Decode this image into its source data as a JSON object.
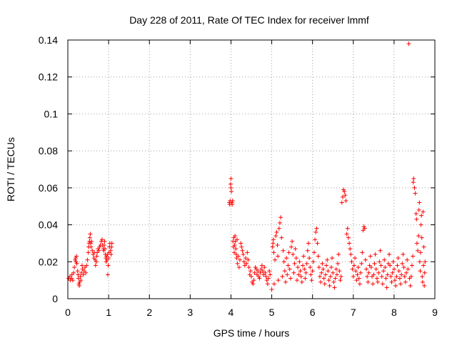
{
  "chart_data": {
    "type": "scatter",
    "title": "Day 228 of 2011, Rate Of TEC Index for receiver lmmf",
    "xlabel": "GPS time / hours",
    "ylabel": "ROTI / TECUs",
    "xlim": [
      0,
      9
    ],
    "ylim": [
      0,
      0.14
    ],
    "xticks": [
      "0",
      "1",
      "2",
      "3",
      "4",
      "5",
      "6",
      "7",
      "8",
      "9"
    ],
    "yticks": [
      "0",
      "0.02",
      "0.04",
      "0.06",
      "0.08",
      "0.1",
      "0.12",
      "0.14"
    ],
    "grid": true,
    "marker": "+",
    "color": "#ff0000",
    "points": [
      [
        0.02,
        0.011
      ],
      [
        0.05,
        0.012
      ],
      [
        0.06,
        0.01
      ],
      [
        0.09,
        0.011
      ],
      [
        0.1,
        0.013
      ],
      [
        0.12,
        0.01
      ],
      [
        0.14,
        0.014
      ],
      [
        0.16,
        0.017
      ],
      [
        0.18,
        0.021
      ],
      [
        0.19,
        0.022
      ],
      [
        0.2,
        0.02
      ],
      [
        0.21,
        0.023
      ],
      [
        0.22,
        0.019
      ],
      [
        0.24,
        0.015
      ],
      [
        0.25,
        0.013
      ],
      [
        0.26,
        0.011
      ],
      [
        0.27,
        0.008
      ],
      [
        0.28,
        0.007
      ],
      [
        0.29,
        0.009
      ],
      [
        0.31,
        0.012
      ],
      [
        0.32,
        0.01
      ],
      [
        0.33,
        0.014
      ],
      [
        0.35,
        0.018
      ],
      [
        0.36,
        0.016
      ],
      [
        0.38,
        0.013
      ],
      [
        0.4,
        0.015
      ],
      [
        0.42,
        0.017
      ],
      [
        0.44,
        0.014
      ],
      [
        0.46,
        0.018
      ],
      [
        0.48,
        0.021
      ],
      [
        0.5,
        0.025
      ],
      [
        0.51,
        0.028
      ],
      [
        0.52,
        0.03
      ],
      [
        0.53,
        0.031
      ],
      [
        0.54,
        0.033
      ],
      [
        0.55,
        0.035
      ],
      [
        0.56,
        0.03
      ],
      [
        0.57,
        0.028
      ],
      [
        0.58,
        0.031
      ],
      [
        0.6,
        0.026
      ],
      [
        0.62,
        0.024
      ],
      [
        0.64,
        0.022
      ],
      [
        0.65,
        0.025
      ],
      [
        0.67,
        0.021
      ],
      [
        0.68,
        0.018
      ],
      [
        0.7,
        0.02
      ],
      [
        0.71,
        0.023
      ],
      [
        0.72,
        0.025
      ],
      [
        0.74,
        0.027
      ],
      [
        0.76,
        0.026
      ],
      [
        0.78,
        0.028
      ],
      [
        0.8,
        0.029
      ],
      [
        0.82,
        0.031
      ],
      [
        0.84,
        0.032
      ],
      [
        0.85,
        0.029
      ],
      [
        0.87,
        0.027
      ],
      [
        0.88,
        0.026
      ],
      [
        0.89,
        0.029
      ],
      [
        0.9,
        0.031
      ],
      [
        0.91,
        0.027
      ],
      [
        0.92,
        0.024
      ],
      [
        0.93,
        0.022
      ],
      [
        0.94,
        0.02
      ],
      [
        0.95,
        0.023
      ],
      [
        0.96,
        0.021
      ],
      [
        0.97,
        0.024
      ],
      [
        0.98,
        0.013
      ],
      [
        0.99,
        0.018
      ],
      [
        1.0,
        0.022
      ],
      [
        1.01,
        0.025
      ],
      [
        1.02,
        0.028
      ],
      [
        1.03,
        0.03
      ],
      [
        1.05,
        0.026
      ],
      [
        1.06,
        0.024
      ],
      [
        1.07,
        0.028
      ],
      [
        1.08,
        0.03
      ],
      [
        3.96,
        0.052
      ],
      [
        3.97,
        0.051
      ],
      [
        3.98,
        0.053
      ],
      [
        3.99,
        0.062
      ],
      [
        4.0,
        0.065
      ],
      [
        4.0,
        0.06
      ],
      [
        4.01,
        0.058
      ],
      [
        4.02,
        0.052
      ],
      [
        4.03,
        0.051
      ],
      [
        4.04,
        0.053
      ],
      [
        4.05,
        0.031
      ],
      [
        4.06,
        0.028
      ],
      [
        4.07,
        0.033
      ],
      [
        4.08,
        0.025
      ],
      [
        4.09,
        0.029
      ],
      [
        4.1,
        0.034
      ],
      [
        4.11,
        0.031
      ],
      [
        4.12,
        0.027
      ],
      [
        4.13,
        0.024
      ],
      [
        4.14,
        0.022
      ],
      [
        4.15,
        0.032
      ],
      [
        4.16,
        0.019
      ],
      [
        4.18,
        0.023
      ],
      [
        4.2,
        0.017
      ],
      [
        4.22,
        0.021
      ],
      [
        4.24,
        0.03
      ],
      [
        4.26,
        0.028
      ],
      [
        4.28,
        0.026
      ],
      [
        4.3,
        0.024
      ],
      [
        4.32,
        0.02
      ],
      [
        4.34,
        0.018
      ],
      [
        4.36,
        0.022
      ],
      [
        4.38,
        0.019
      ],
      [
        4.4,
        0.025
      ],
      [
        4.42,
        0.021
      ],
      [
        4.44,
        0.017
      ],
      [
        4.46,
        0.013
      ],
      [
        4.48,
        0.015
      ],
      [
        4.5,
        0.012
      ],
      [
        4.52,
        0.009
      ],
      [
        4.54,
        0.008
      ],
      [
        4.56,
        0.01
      ],
      [
        4.58,
        0.014
      ],
      [
        4.6,
        0.017
      ],
      [
        4.62,
        0.016
      ],
      [
        4.64,
        0.013
      ],
      [
        4.66,
        0.015
      ],
      [
        4.68,
        0.012
      ],
      [
        4.7,
        0.011
      ],
      [
        4.72,
        0.014
      ],
      [
        4.74,
        0.016
      ],
      [
        4.76,
        0.018
      ],
      [
        4.78,
        0.015
      ],
      [
        4.8,
        0.013
      ],
      [
        4.82,
        0.017
      ],
      [
        4.84,
        0.014
      ],
      [
        4.86,
        0.012
      ],
      [
        4.88,
        0.01
      ],
      [
        4.9,
        0.008
      ],
      [
        4.92,
        0.011
      ],
      [
        4.94,
        0.015
      ],
      [
        4.96,
        0.013
      ],
      [
        5.0,
        0.005
      ],
      [
        5.02,
        0.028
      ],
      [
        5.03,
        0.03
      ],
      [
        5.04,
        0.032
      ],
      [
        5.05,
        0.025
      ],
      [
        5.06,
        0.008
      ],
      [
        5.08,
        0.021
      ],
      [
        5.1,
        0.034
      ],
      [
        5.12,
        0.036
      ],
      [
        5.14,
        0.029
      ],
      [
        5.15,
        0.023
      ],
      [
        5.16,
        0.01
      ],
      [
        5.18,
        0.038
      ],
      [
        5.2,
        0.041
      ],
      [
        5.22,
        0.044
      ],
      [
        5.24,
        0.033
      ],
      [
        5.26,
        0.012
      ],
      [
        5.28,
        0.026
      ],
      [
        5.3,
        0.02
      ],
      [
        5.32,
        0.015
      ],
      [
        5.34,
        0.009
      ],
      [
        5.36,
        0.022
      ],
      [
        5.38,
        0.013
      ],
      [
        5.4,
        0.018
      ],
      [
        5.42,
        0.025
      ],
      [
        5.44,
        0.016
      ],
      [
        5.46,
        0.011
      ],
      [
        5.48,
        0.028
      ],
      [
        5.5,
        0.031
      ],
      [
        5.52,
        0.024
      ],
      [
        5.54,
        0.014
      ],
      [
        5.56,
        0.019
      ],
      [
        5.58,
        0.027
      ],
      [
        5.6,
        0.022
      ],
      [
        5.62,
        0.01
      ],
      [
        5.64,
        0.017
      ],
      [
        5.66,
        0.013
      ],
      [
        5.68,
        0.02
      ],
      [
        5.7,
        0.015
      ],
      [
        5.72,
        0.012
      ],
      [
        5.74,
        0.009
      ],
      [
        5.76,
        0.018
      ],
      [
        5.78,
        0.023
      ],
      [
        5.8,
        0.016
      ],
      [
        5.82,
        0.011
      ],
      [
        5.84,
        0.014
      ],
      [
        5.86,
        0.019
      ],
      [
        5.88,
        0.026
      ],
      [
        5.9,
        0.03
      ],
      [
        5.92,
        0.022
      ],
      [
        5.94,
        0.017
      ],
      [
        5.96,
        0.013
      ],
      [
        5.98,
        0.01
      ],
      [
        6.0,
        0.015
      ],
      [
        6.02,
        0.02
      ],
      [
        6.04,
        0.025
      ],
      [
        6.06,
        0.032
      ],
      [
        6.08,
        0.036
      ],
      [
        6.1,
        0.038
      ],
      [
        6.12,
        0.03
      ],
      [
        6.14,
        0.023
      ],
      [
        6.16,
        0.017
      ],
      [
        6.18,
        0.012
      ],
      [
        6.2,
        0.009
      ],
      [
        6.22,
        0.014
      ],
      [
        6.24,
        0.019
      ],
      [
        6.26,
        0.016
      ],
      [
        6.28,
        0.011
      ],
      [
        6.3,
        0.008
      ],
      [
        6.32,
        0.013
      ],
      [
        6.34,
        0.018
      ],
      [
        6.36,
        0.021
      ],
      [
        6.38,
        0.015
      ],
      [
        6.4,
        0.01
      ],
      [
        6.42,
        0.007
      ],
      [
        6.44,
        0.012
      ],
      [
        6.46,
        0.017
      ],
      [
        6.48,
        0.022
      ],
      [
        6.5,
        0.014
      ],
      [
        6.52,
        0.009
      ],
      [
        6.54,
        0.006
      ],
      [
        6.56,
        0.011
      ],
      [
        6.58,
        0.016
      ],
      [
        6.6,
        0.013
      ],
      [
        6.62,
        0.019
      ],
      [
        6.64,
        0.024
      ],
      [
        6.66,
        0.015
      ],
      [
        6.68,
        0.01
      ],
      [
        6.7,
        0.012
      ],
      [
        6.72,
        0.052
      ],
      [
        6.74,
        0.055
      ],
      [
        6.76,
        0.059
      ],
      [
        6.78,
        0.058
      ],
      [
        6.8,
        0.056
      ],
      [
        6.82,
        0.053
      ],
      [
        6.84,
        0.035
      ],
      [
        6.86,
        0.038
      ],
      [
        6.88,
        0.033
      ],
      [
        6.9,
        0.03
      ],
      [
        6.92,
        0.027
      ],
      [
        6.94,
        0.024
      ],
      [
        6.96,
        0.02
      ],
      [
        6.98,
        0.016
      ],
      [
        7.0,
        0.012
      ],
      [
        7.02,
        0.018
      ],
      [
        7.04,
        0.022
      ],
      [
        7.06,
        0.015
      ],
      [
        7.08,
        0.01
      ],
      [
        7.1,
        0.013
      ],
      [
        7.12,
        0.017
      ],
      [
        7.14,
        0.011
      ],
      [
        7.16,
        0.008
      ],
      [
        7.18,
        0.014
      ],
      [
        7.2,
        0.019
      ],
      [
        7.22,
        0.025
      ],
      [
        7.24,
        0.037
      ],
      [
        7.26,
        0.039
      ],
      [
        7.28,
        0.038
      ],
      [
        7.3,
        0.021
      ],
      [
        7.32,
        0.016
      ],
      [
        7.34,
        0.012
      ],
      [
        7.36,
        0.009
      ],
      [
        7.38,
        0.014
      ],
      [
        7.4,
        0.018
      ],
      [
        7.42,
        0.023
      ],
      [
        7.44,
        0.017
      ],
      [
        7.46,
        0.012
      ],
      [
        7.48,
        0.008
      ],
      [
        7.5,
        0.013
      ],
      [
        7.52,
        0.019
      ],
      [
        7.54,
        0.024
      ],
      [
        7.56,
        0.016
      ],
      [
        7.58,
        0.011
      ],
      [
        7.6,
        0.009
      ],
      [
        7.62,
        0.014
      ],
      [
        7.64,
        0.02
      ],
      [
        7.66,
        0.026
      ],
      [
        7.68,
        0.018
      ],
      [
        7.7,
        0.012
      ],
      [
        7.72,
        0.008
      ],
      [
        7.74,
        0.015
      ],
      [
        7.76,
        0.021
      ],
      [
        7.78,
        0.017
      ],
      [
        7.8,
        0.011
      ],
      [
        7.82,
        0.006
      ],
      [
        7.84,
        0.013
      ],
      [
        7.86,
        0.019
      ],
      [
        7.88,
        0.024
      ],
      [
        7.9,
        0.018
      ],
      [
        7.92,
        0.012
      ],
      [
        7.94,
        0.009
      ],
      [
        7.96,
        0.014
      ],
      [
        7.98,
        0.02
      ],
      [
        8.0,
        0.016
      ],
      [
        8.02,
        0.01
      ],
      [
        8.04,
        0.007
      ],
      [
        8.06,
        0.012
      ],
      [
        8.08,
        0.018
      ],
      [
        8.1,
        0.022
      ],
      [
        8.12,
        0.015
      ],
      [
        8.14,
        0.011
      ],
      [
        8.16,
        0.008
      ],
      [
        8.18,
        0.013
      ],
      [
        8.2,
        0.019
      ],
      [
        8.22,
        0.024
      ],
      [
        8.24,
        0.017
      ],
      [
        8.26,
        0.012
      ],
      [
        8.28,
        0.009
      ],
      [
        8.3,
        0.014
      ],
      [
        8.32,
        0.021
      ],
      [
        8.34,
        0.016
      ],
      [
        8.36,
        0.138
      ],
      [
        8.38,
        0.011
      ],
      [
        8.4,
        0.007
      ],
      [
        8.42,
        0.012
      ],
      [
        8.44,
        0.018
      ],
      [
        8.46,
        0.023
      ],
      [
        8.47,
        0.063
      ],
      [
        8.48,
        0.065
      ],
      [
        8.5,
        0.06
      ],
      [
        8.52,
        0.057
      ],
      [
        8.54,
        0.046
      ],
      [
        8.55,
        0.043
      ],
      [
        8.56,
        0.03
      ],
      [
        8.58,
        0.026
      ],
      [
        8.6,
        0.034
      ],
      [
        8.61,
        0.048
      ],
      [
        8.62,
        0.052
      ],
      [
        8.63,
        0.02
      ],
      [
        8.64,
        0.015
      ],
      [
        8.65,
        0.025
      ],
      [
        8.66,
        0.04
      ],
      [
        8.67,
        0.045
      ],
      [
        8.68,
        0.033
      ],
      [
        8.69,
        0.012
      ],
      [
        8.7,
        0.009
      ],
      [
        8.71,
        0.047
      ],
      [
        8.72,
        0.018
      ],
      [
        8.73,
        0.028
      ],
      [
        8.74,
        0.007
      ],
      [
        8.75,
        0.014
      ],
      [
        8.76,
        0.02
      ]
    ]
  }
}
